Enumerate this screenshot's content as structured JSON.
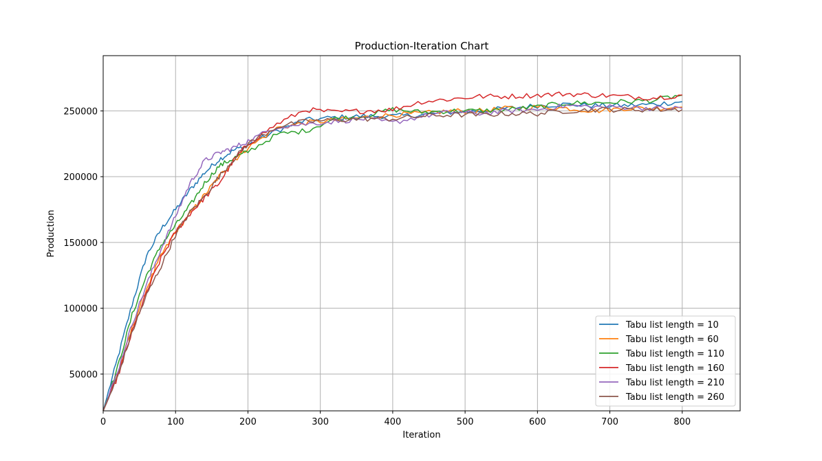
{
  "chart_data": {
    "type": "line",
    "title": "Production-Iteration Chart",
    "xlabel": "Iteration",
    "ylabel": "Production",
    "xlim": [
      0,
      880
    ],
    "ylim": [
      22000,
      292000
    ],
    "xticks": [
      0,
      100,
      200,
      300,
      400,
      500,
      600,
      700,
      800
    ],
    "yticks": [
      50000,
      100000,
      150000,
      200000,
      250000
    ],
    "xtick_labels": [
      "0",
      "100",
      "200",
      "300",
      "400",
      "500",
      "600",
      "700",
      "800"
    ],
    "ytick_labels": [
      "50000",
      "100000",
      "150000",
      "200000",
      "250000"
    ],
    "grid": true,
    "legend_position": "lower-right",
    "series": [
      {
        "name": "Tabu list length = 10",
        "color": "#1f77b4",
        "x": [
          0,
          20,
          40,
          60,
          80,
          100,
          120,
          140,
          160,
          180,
          200,
          240,
          280,
          320,
          360,
          400,
          440,
          480,
          520,
          560,
          600,
          640,
          680,
          720,
          760,
          800
        ],
        "y": [
          22000,
          62000,
          103000,
          140000,
          160000,
          175000,
          190000,
          203000,
          213000,
          220000,
          224000,
          235000,
          243000,
          245000,
          246000,
          246000,
          247000,
          249000,
          250000,
          252000,
          254000,
          255000,
          254000,
          254000,
          255000,
          257000
        ]
      },
      {
        "name": "Tabu list length = 60",
        "color": "#ff7f0e",
        "x": [
          0,
          20,
          40,
          60,
          80,
          100,
          120,
          140,
          160,
          180,
          200,
          240,
          280,
          320,
          360,
          400,
          440,
          480,
          520,
          560,
          600,
          640,
          680,
          720,
          760,
          800
        ],
        "y": [
          22000,
          50000,
          85000,
          115000,
          140000,
          158000,
          172000,
          186000,
          200000,
          212000,
          222000,
          237000,
          241000,
          243000,
          245000,
          247000,
          248000,
          250000,
          250000,
          252000,
          253000,
          252000,
          250000,
          252000,
          252000,
          253000
        ]
      },
      {
        "name": "Tabu list length = 110",
        "color": "#2ca02c",
        "x": [
          0,
          20,
          40,
          60,
          80,
          100,
          120,
          140,
          160,
          180,
          200,
          240,
          280,
          320,
          360,
          400,
          440,
          480,
          520,
          560,
          600,
          640,
          680,
          720,
          760,
          800
        ],
        "y": [
          22000,
          55000,
          95000,
          125000,
          148000,
          163000,
          178000,
          195000,
          208000,
          214000,
          219000,
          232000,
          235000,
          244000,
          246000,
          251000,
          249000,
          250000,
          250000,
          251000,
          253000,
          256000,
          256000,
          257000,
          258000,
          262000
        ]
      },
      {
        "name": "Tabu list length = 160",
        "color": "#d62728",
        "x": [
          0,
          20,
          40,
          60,
          80,
          100,
          120,
          140,
          160,
          180,
          200,
          240,
          280,
          320,
          360,
          400,
          440,
          480,
          520,
          560,
          600,
          640,
          680,
          720,
          760,
          800
        ],
        "y": [
          22000,
          48000,
          82000,
          112000,
          138000,
          158000,
          172000,
          184000,
          195000,
          212000,
          225000,
          240000,
          251000,
          249000,
          250000,
          251000,
          257000,
          259000,
          261000,
          261000,
          262000,
          263000,
          262000,
          261000,
          260000,
          262000
        ]
      },
      {
        "name": "Tabu list length = 210",
        "color": "#9467bd",
        "x": [
          0,
          20,
          40,
          60,
          80,
          100,
          120,
          140,
          160,
          180,
          200,
          240,
          280,
          320,
          360,
          400,
          440,
          480,
          520,
          560,
          600,
          640,
          680,
          720,
          760,
          800
        ],
        "y": [
          22000,
          52000,
          88000,
          118000,
          145000,
          170000,
          195000,
          212000,
          218000,
          222000,
          227000,
          238000,
          240000,
          242000,
          244000,
          241000,
          246000,
          249000,
          248000,
          250000,
          251000,
          254000,
          253000,
          253000,
          252000,
          252000
        ]
      },
      {
        "name": "Tabu list length = 260",
        "color": "#8c564b",
        "x": [
          0,
          20,
          40,
          60,
          80,
          100,
          120,
          140,
          160,
          180,
          200,
          240,
          280,
          320,
          360,
          400,
          440,
          480,
          520,
          560,
          600,
          640,
          680,
          720,
          760,
          800
        ],
        "y": [
          22000,
          48000,
          82000,
          110000,
          132000,
          156000,
          173000,
          185000,
          200000,
          213000,
          225000,
          238000,
          242000,
          243000,
          244000,
          244000,
          246000,
          247000,
          247000,
          248000,
          248000,
          250000,
          251000,
          251000,
          251000,
          251000
        ]
      }
    ]
  }
}
